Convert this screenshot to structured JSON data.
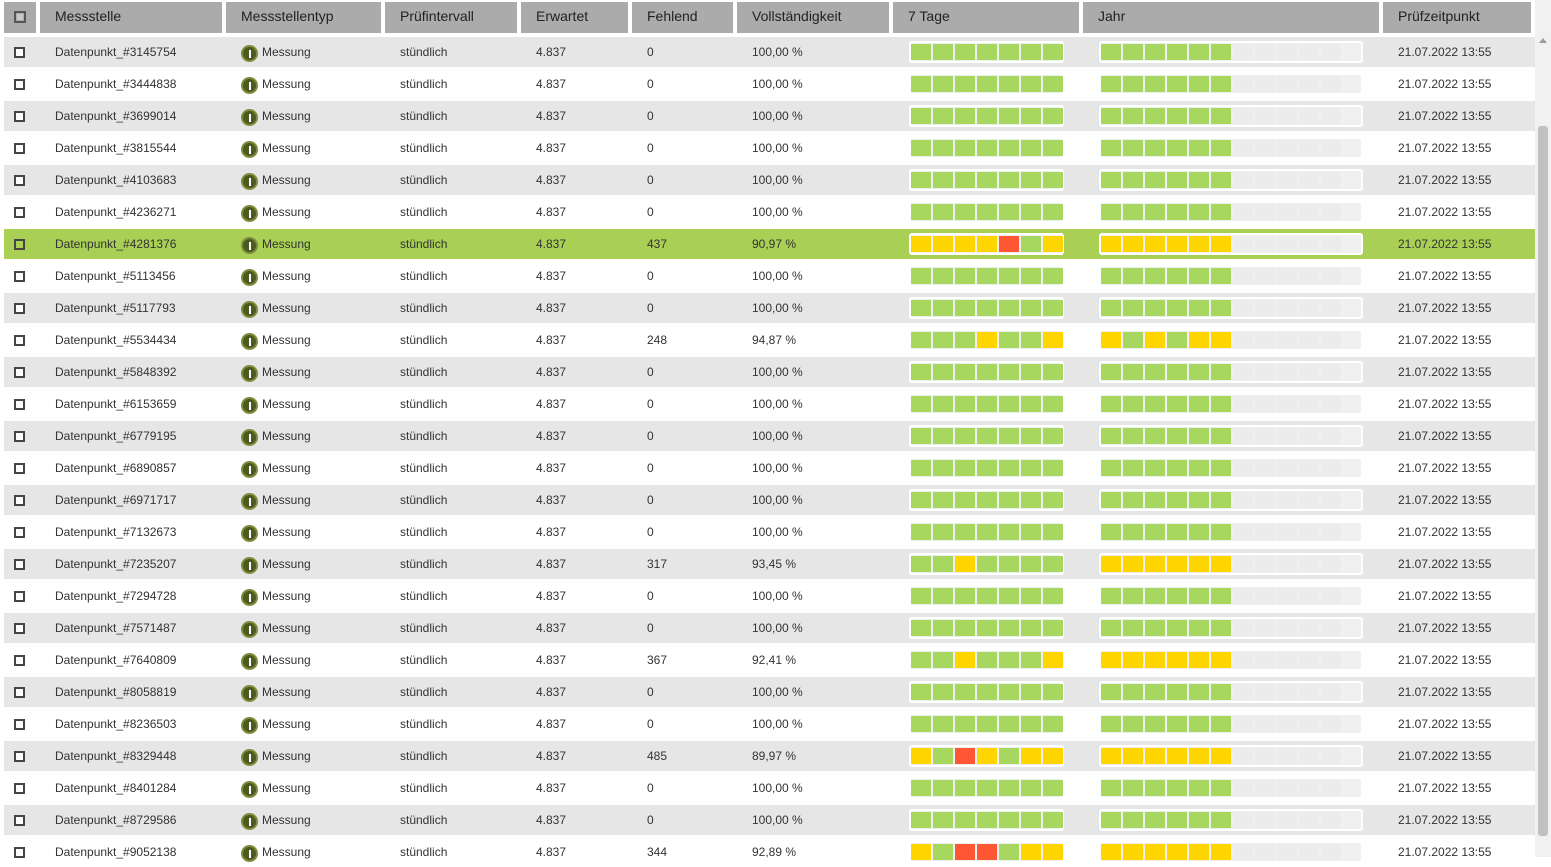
{
  "header": {
    "columns": [
      "Messstelle",
      "Messstellentyp",
      "Prüfintervall",
      "Erwartet",
      "Fehlend",
      "Vollständigkeit",
      "7 Tage",
      "Jahr",
      "Prüfzeitpunkt"
    ]
  },
  "colors": {
    "green": "#a7d75e",
    "yellow": "#ffd500",
    "red": "#ff5733",
    "empty": "#ececec",
    "selected_row": "#a9cf55",
    "header": "#ababab"
  },
  "icons": {
    "type": "measurement-icon",
    "checkbox": "checkbox-icon"
  },
  "rows": [
    {
      "name": "Datenpunkt_#3145754",
      "type": "Messung",
      "interval": "stündlich",
      "expected": "4.837",
      "missing": "0",
      "completeness": "100,00 %",
      "days7": "ggggggg",
      "year": "ggggggeeeee",
      "checked": "21.07.2022 13:55"
    },
    {
      "name": "Datenpunkt_#3444838",
      "type": "Messung",
      "interval": "stündlich",
      "expected": "4.837",
      "missing": "0",
      "completeness": "100,00 %",
      "days7": "ggggggg",
      "year": "ggggggeeeee",
      "checked": "21.07.2022 13:55"
    },
    {
      "name": "Datenpunkt_#3699014",
      "type": "Messung",
      "interval": "stündlich",
      "expected": "4.837",
      "missing": "0",
      "completeness": "100,00 %",
      "days7": "ggggggg",
      "year": "ggggggeeeee",
      "checked": "21.07.2022 13:55"
    },
    {
      "name": "Datenpunkt_#3815544",
      "type": "Messung",
      "interval": "stündlich",
      "expected": "4.837",
      "missing": "0",
      "completeness": "100,00 %",
      "days7": "ggggggg",
      "year": "ggggggeeeee",
      "checked": "21.07.2022 13:55"
    },
    {
      "name": "Datenpunkt_#4103683",
      "type": "Messung",
      "interval": "stündlich",
      "expected": "4.837",
      "missing": "0",
      "completeness": "100,00 %",
      "days7": "ggggggg",
      "year": "ggggggeeeee",
      "checked": "21.07.2022 13:55"
    },
    {
      "name": "Datenpunkt_#4236271",
      "type": "Messung",
      "interval": "stündlich",
      "expected": "4.837",
      "missing": "0",
      "completeness": "100,00 %",
      "days7": "ggggggg",
      "year": "ggggggeeeee",
      "checked": "21.07.2022 13:55"
    },
    {
      "name": "Datenpunkt_#4281376",
      "type": "Messung",
      "interval": "stündlich",
      "expected": "4.837",
      "missing": "437",
      "completeness": "90,97 %",
      "days7": "yyyyrgy",
      "year": "yyyyyyeeeee",
      "checked": "21.07.2022 13:55",
      "selected": true
    },
    {
      "name": "Datenpunkt_#5113456",
      "type": "Messung",
      "interval": "stündlich",
      "expected": "4.837",
      "missing": "0",
      "completeness": "100,00 %",
      "days7": "ggggggg",
      "year": "ggggggeeeee",
      "checked": "21.07.2022 13:55"
    },
    {
      "name": "Datenpunkt_#5117793",
      "type": "Messung",
      "interval": "stündlich",
      "expected": "4.837",
      "missing": "0",
      "completeness": "100,00 %",
      "days7": "ggggggg",
      "year": "ggggggeeeee",
      "checked": "21.07.2022 13:55"
    },
    {
      "name": "Datenpunkt_#5534434",
      "type": "Messung",
      "interval": "stündlich",
      "expected": "4.837",
      "missing": "248",
      "completeness": "94,87 %",
      "days7": "gggyggy",
      "year": "ygygyyeeeee",
      "checked": "21.07.2022 13:55"
    },
    {
      "name": "Datenpunkt_#5848392",
      "type": "Messung",
      "interval": "stündlich",
      "expected": "4.837",
      "missing": "0",
      "completeness": "100,00 %",
      "days7": "ggggggg",
      "year": "ggggggeeeee",
      "checked": "21.07.2022 13:55"
    },
    {
      "name": "Datenpunkt_#6153659",
      "type": "Messung",
      "interval": "stündlich",
      "expected": "4.837",
      "missing": "0",
      "completeness": "100,00 %",
      "days7": "ggggggg",
      "year": "ggggggeeeee",
      "checked": "21.07.2022 13:55"
    },
    {
      "name": "Datenpunkt_#6779195",
      "type": "Messung",
      "interval": "stündlich",
      "expected": "4.837",
      "missing": "0",
      "completeness": "100,00 %",
      "days7": "ggggggg",
      "year": "ggggggeeeee",
      "checked": "21.07.2022 13:55"
    },
    {
      "name": "Datenpunkt_#6890857",
      "type": "Messung",
      "interval": "stündlich",
      "expected": "4.837",
      "missing": "0",
      "completeness": "100,00 %",
      "days7": "ggggggg",
      "year": "ggggggeeeee",
      "checked": "21.07.2022 13:55"
    },
    {
      "name": "Datenpunkt_#6971717",
      "type": "Messung",
      "interval": "stündlich",
      "expected": "4.837",
      "missing": "0",
      "completeness": "100,00 %",
      "days7": "ggggggg",
      "year": "ggggggeeeee",
      "checked": "21.07.2022 13:55"
    },
    {
      "name": "Datenpunkt_#7132673",
      "type": "Messung",
      "interval": "stündlich",
      "expected": "4.837",
      "missing": "0",
      "completeness": "100,00 %",
      "days7": "ggggggg",
      "year": "ggggggeeeee",
      "checked": "21.07.2022 13:55"
    },
    {
      "name": "Datenpunkt_#7235207",
      "type": "Messung",
      "interval": "stündlich",
      "expected": "4.837",
      "missing": "317",
      "completeness": "93,45 %",
      "days7": "ggygggg",
      "year": "yyyyyyeeeee",
      "checked": "21.07.2022 13:55"
    },
    {
      "name": "Datenpunkt_#7294728",
      "type": "Messung",
      "interval": "stündlich",
      "expected": "4.837",
      "missing": "0",
      "completeness": "100,00 %",
      "days7": "ggggggg",
      "year": "ggggggeeeee",
      "checked": "21.07.2022 13:55"
    },
    {
      "name": "Datenpunkt_#7571487",
      "type": "Messung",
      "interval": "stündlich",
      "expected": "4.837",
      "missing": "0",
      "completeness": "100,00 %",
      "days7": "ggggggg",
      "year": "ggggggeeeee",
      "checked": "21.07.2022 13:55"
    },
    {
      "name": "Datenpunkt_#7640809",
      "type": "Messung",
      "interval": "stündlich",
      "expected": "4.837",
      "missing": "367",
      "completeness": "92,41 %",
      "days7": "ggygggy",
      "year": "yyyyyyeeeee",
      "checked": "21.07.2022 13:55"
    },
    {
      "name": "Datenpunkt_#8058819",
      "type": "Messung",
      "interval": "stündlich",
      "expected": "4.837",
      "missing": "0",
      "completeness": "100,00 %",
      "days7": "ggggggg",
      "year": "ggggggeeeee",
      "checked": "21.07.2022 13:55"
    },
    {
      "name": "Datenpunkt_#8236503",
      "type": "Messung",
      "interval": "stündlich",
      "expected": "4.837",
      "missing": "0",
      "completeness": "100,00 %",
      "days7": "ggggggg",
      "year": "ggggggeeeee",
      "checked": "21.07.2022 13:55"
    },
    {
      "name": "Datenpunkt_#8329448",
      "type": "Messung",
      "interval": "stündlich",
      "expected": "4.837",
      "missing": "485",
      "completeness": "89,97 %",
      "days7": "ygrygyy",
      "year": "yyyyyyeeeee",
      "checked": "21.07.2022 13:55"
    },
    {
      "name": "Datenpunkt_#8401284",
      "type": "Messung",
      "interval": "stündlich",
      "expected": "4.837",
      "missing": "0",
      "completeness": "100,00 %",
      "days7": "ggggggg",
      "year": "ggggggeeeee",
      "checked": "21.07.2022 13:55"
    },
    {
      "name": "Datenpunkt_#8729586",
      "type": "Messung",
      "interval": "stündlich",
      "expected": "4.837",
      "missing": "0",
      "completeness": "100,00 %",
      "days7": "ggggggg",
      "year": "ggggggeeeee",
      "checked": "21.07.2022 13:55"
    },
    {
      "name": "Datenpunkt_#9052138",
      "type": "Messung",
      "interval": "stündlich",
      "expected": "4.837",
      "missing": "344",
      "completeness": "92,89 %",
      "days7": "ygrrgyy",
      "year": "yyyyyyeeeee",
      "checked": "21.07.2022 13:55"
    }
  ]
}
